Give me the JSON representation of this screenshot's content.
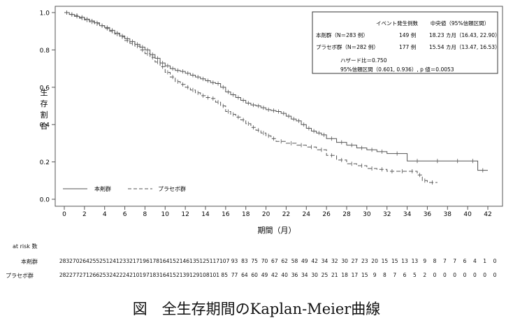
{
  "caption": "図　全生存期間のKaplan-Meier曲線",
  "chart_data": {
    "type": "line",
    "step": true,
    "xlabel": "期間（月）",
    "ylabel": "生存割合",
    "xlim": [
      0,
      42
    ],
    "ylim": [
      0.0,
      1.0
    ],
    "x_ticks": [
      0,
      2,
      4,
      6,
      8,
      10,
      12,
      14,
      16,
      18,
      20,
      22,
      24,
      26,
      28,
      30,
      32,
      34,
      36,
      38,
      40,
      42
    ],
    "y_ticks": [
      "0.0",
      "0.2",
      "0.4",
      "0.6",
      "0.8",
      "1.0"
    ],
    "grid": false,
    "legend": {
      "placement": "bottom-left",
      "entries": [
        {
          "label": "本剤群",
          "style": "solid",
          "color": "#555555"
        },
        {
          "label": "プラセボ群",
          "style": "dashed",
          "color": "#555555"
        }
      ]
    },
    "stats_box": {
      "placement": "top-right",
      "header_events": "イベント発生例数",
      "header_median": "中央値（95%信頼区間）",
      "rows": [
        {
          "group": "本剤群（N＝283 例）",
          "events": "149 例",
          "median": "18.23 カ月（16.43, 22.90）"
        },
        {
          "group": "プラセボ群（N＝282 例）",
          "events": "177 例",
          "median": "15.54 カ月（13.47, 16.53）"
        }
      ],
      "hazard_ratio": "ハザード比＝0.750",
      "ci_p": "95%信頼区間（0.601, 0.936）, p 値＝0.0053"
    },
    "series": [
      {
        "name": "本剤群",
        "style": "solid",
        "x": [
          0,
          0.5,
          1,
          1.5,
          2,
          2.5,
          3,
          3.5,
          4,
          4.5,
          5,
          5.5,
          6,
          6.5,
          7,
          7.5,
          8,
          8.5,
          9,
          9.5,
          10,
          10.5,
          11,
          11.5,
          12,
          12.5,
          13,
          13.5,
          14,
          14.5,
          15,
          15.5,
          16,
          16.5,
          17,
          17.5,
          18,
          18.5,
          19,
          19.5,
          20,
          20.5,
          21,
          21.5,
          22,
          22.5,
          23,
          23.5,
          24,
          24.5,
          25,
          25.5,
          26,
          27,
          28,
          29,
          30,
          31,
          32,
          34,
          36,
          38,
          40,
          41,
          42
        ],
        "y": [
          1.0,
          0.99,
          0.98,
          0.975,
          0.965,
          0.955,
          0.945,
          0.93,
          0.92,
          0.905,
          0.89,
          0.875,
          0.86,
          0.845,
          0.83,
          0.815,
          0.8,
          0.775,
          0.755,
          0.73,
          0.715,
          0.7,
          0.69,
          0.685,
          0.675,
          0.665,
          0.655,
          0.645,
          0.635,
          0.625,
          0.62,
          0.6,
          0.575,
          0.56,
          0.545,
          0.53,
          0.515,
          0.505,
          0.5,
          0.49,
          0.48,
          0.475,
          0.47,
          0.46,
          0.445,
          0.43,
          0.42,
          0.4,
          0.38,
          0.365,
          0.355,
          0.345,
          0.325,
          0.305,
          0.29,
          0.275,
          0.265,
          0.255,
          0.245,
          0.205,
          0.205,
          0.205,
          0.205,
          0.155,
          0.155
        ]
      },
      {
        "name": "プラセボ群",
        "style": "dashed",
        "x": [
          0,
          0.5,
          1,
          1.5,
          2,
          2.5,
          3,
          3.5,
          4,
          4.5,
          5,
          5.5,
          6,
          6.5,
          7,
          7.5,
          8,
          8.5,
          9,
          9.5,
          10,
          10.5,
          11,
          11.5,
          12,
          12.5,
          13,
          13.5,
          14,
          14.5,
          15,
          15.5,
          16,
          16.5,
          17,
          17.5,
          18,
          18.5,
          19,
          19.5,
          20,
          20.5,
          21,
          22,
          23,
          24,
          25,
          26,
          27,
          28,
          29,
          30,
          31,
          32,
          33,
          34,
          35,
          35.5,
          36,
          37
        ],
        "y": [
          1.0,
          0.99,
          0.985,
          0.97,
          0.96,
          0.95,
          0.94,
          0.93,
          0.915,
          0.9,
          0.885,
          0.87,
          0.85,
          0.835,
          0.82,
          0.8,
          0.78,
          0.76,
          0.735,
          0.71,
          0.68,
          0.655,
          0.63,
          0.615,
          0.6,
          0.585,
          0.57,
          0.555,
          0.545,
          0.54,
          0.52,
          0.5,
          0.47,
          0.455,
          0.44,
          0.425,
          0.405,
          0.385,
          0.37,
          0.355,
          0.34,
          0.325,
          0.31,
          0.3,
          0.29,
          0.28,
          0.265,
          0.235,
          0.21,
          0.19,
          0.18,
          0.165,
          0.16,
          0.15,
          0.15,
          0.15,
          0.13,
          0.1,
          0.09,
          0.09
        ]
      }
    ],
    "at_risk": {
      "title": "at risk 数",
      "groups": [
        {
          "label": "本剤群",
          "counts": [
            283,
            270,
            264,
            255,
            251,
            241,
            233,
            217,
            196,
            178,
            164,
            152,
            146,
            135,
            125,
            117,
            107,
            93,
            83,
            75,
            70,
            67,
            62,
            58,
            49,
            42,
            34,
            32,
            30,
            27,
            23,
            20,
            15,
            15,
            13,
            13,
            9,
            8,
            7,
            7,
            6,
            4,
            1,
            0
          ]
        },
        {
          "label": "プラセボ群",
          "counts": [
            282,
            277,
            271,
            266,
            253,
            242,
            224,
            210,
            197,
            183,
            164,
            152,
            139,
            129,
            108,
            101,
            85,
            77,
            64,
            60,
            49,
            42,
            40,
            36,
            34,
            30,
            25,
            21,
            18,
            17,
            15,
            9,
            8,
            7,
            6,
            5,
            2,
            0,
            0,
            0,
            0,
            0,
            0,
            0
          ]
        }
      ]
    }
  }
}
